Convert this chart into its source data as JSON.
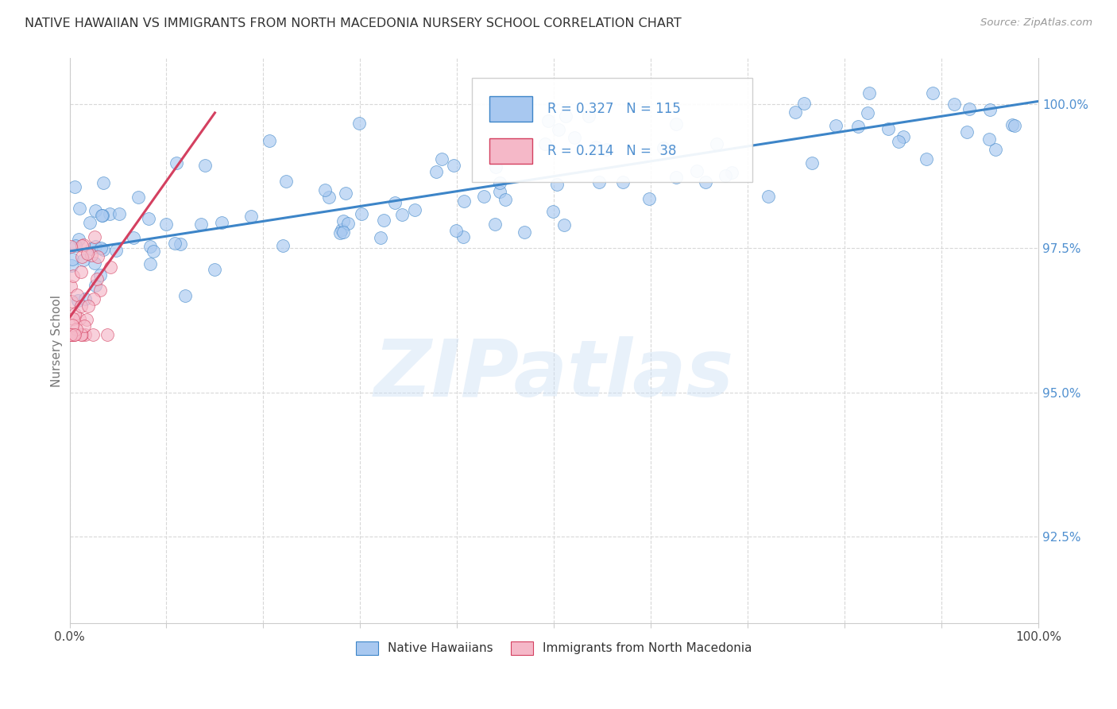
{
  "title": "NATIVE HAWAIIAN VS IMMIGRANTS FROM NORTH MACEDONIA NURSERY SCHOOL CORRELATION CHART",
  "source": "Source: ZipAtlas.com",
  "ylabel": "Nursery School",
  "watermark": "ZIPatlas",
  "legend_entry_blue": "R = 0.327   N = 115",
  "legend_entry_pink": "R = 0.214   N =  38",
  "legend_labels_bottom": [
    "Native Hawaiians",
    "Immigrants from North Macedonia"
  ],
  "xlim": [
    0.0,
    1.0
  ],
  "ylim": [
    0.91,
    1.008
  ],
  "yticks": [
    0.925,
    0.95,
    0.975,
    1.0
  ],
  "ytick_labels": [
    "92.5%",
    "95.0%",
    "97.5%",
    "100.0%"
  ],
  "xticks": [
    0.0,
    0.1,
    0.2,
    0.3,
    0.4,
    0.5,
    0.6,
    0.7,
    0.8,
    0.9,
    1.0
  ],
  "xtick_labels": [
    "0.0%",
    "",
    "",
    "",
    "",
    "",
    "",
    "",
    "",
    "",
    "100.0%"
  ],
  "blue_scatter_color": "#a8c8f0",
  "pink_scatter_color": "#f5b8c8",
  "blue_line_color": "#3d85c8",
  "pink_line_color": "#d44060",
  "grid_color": "#d8d8d8",
  "background_color": "#ffffff",
  "title_color": "#333333",
  "axis_label_color": "#777777",
  "right_tick_color": "#5090d0",
  "source_color": "#999999",
  "blue_trend_x0": 0.0,
  "blue_trend_y0": 0.9745,
  "blue_trend_x1": 1.0,
  "blue_trend_y1": 1.0005,
  "pink_trend_x0": 0.0,
  "pink_trend_y0": 0.963,
  "pink_trend_x1": 0.15,
  "pink_trend_y1": 0.9985
}
